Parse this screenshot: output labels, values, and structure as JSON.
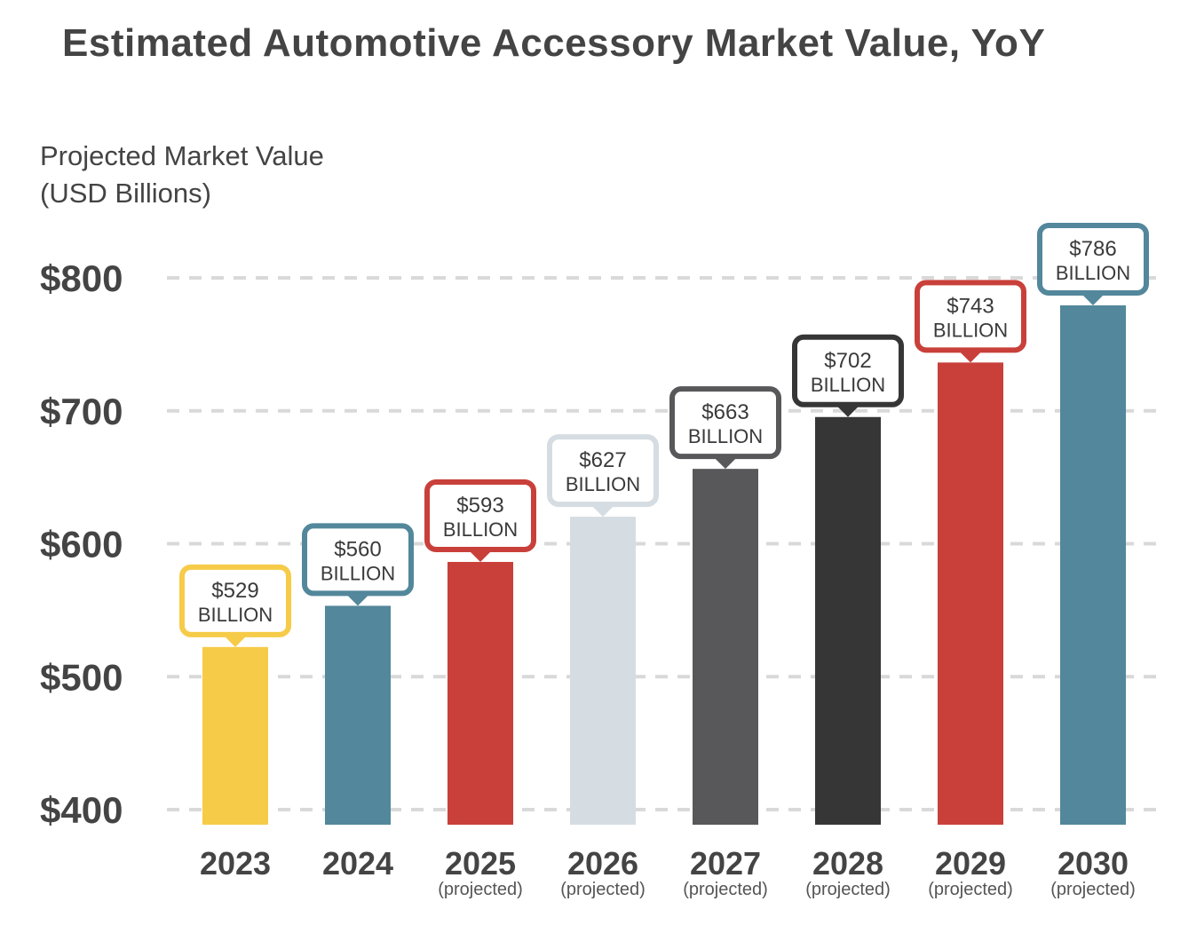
{
  "chart_data": {
    "type": "bar",
    "title": "Estimated Automotive Accessory Market Value, YoY",
    "ylabel_lines": [
      "Projected Market Value",
      "(USD Billions)"
    ],
    "xlabel": "",
    "ylim": [
      400,
      800
    ],
    "y_ticks": [
      800,
      700,
      600,
      500,
      400
    ],
    "y_tick_labels": [
      "$800",
      "$700",
      "$600",
      "$500",
      "$400"
    ],
    "grid": "horizontal dashed",
    "categories": [
      "2023",
      "2024",
      "2025",
      "2026",
      "2027",
      "2028",
      "2029",
      "2030"
    ],
    "sublabels": [
      "",
      "",
      "(projected)",
      "(projected)",
      "(projected)",
      "(projected)",
      "(projected)",
      "(projected)"
    ],
    "values": [
      529,
      560,
      593,
      627,
      663,
      702,
      743,
      786
    ],
    "value_labels": [
      "$529",
      "$560",
      "$593",
      "$627",
      "$663",
      "$702",
      "$743",
      "$786"
    ],
    "value_unit": "BILLION",
    "colors": [
      "#f6cb48",
      "#53879b",
      "#c9403a",
      "#d5dde3",
      "#58585a",
      "#363636",
      "#c9403a",
      "#53879b"
    ]
  }
}
